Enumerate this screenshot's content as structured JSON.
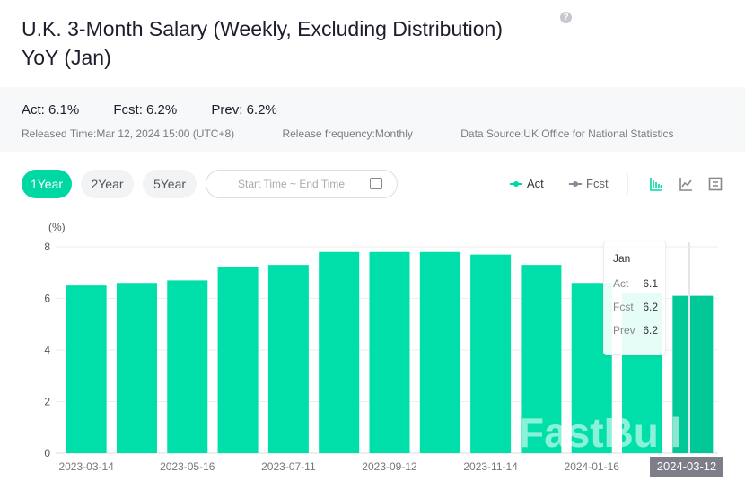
{
  "header": {
    "title": "U.K. 3-Month Salary (Weekly, Excluding Distribution) YoY (Jan)",
    "help_icon": "question-circle-icon"
  },
  "info": {
    "act": "Act: 6.1%",
    "fcst": "Fcst: 6.2%",
    "prev": "Prev: 6.2%",
    "released": "Released Time:Mar 12, 2024 15:00 (UTC+8)",
    "frequency": "Release frequency:Monthly",
    "source": "Data Source:UK Office for National Statistics"
  },
  "controls": {
    "ranges": [
      "1Year",
      "2Year",
      "5Year"
    ],
    "active_range": "1Year",
    "date_placeholder": "Start Time ~ End Time",
    "legend_act": "Act",
    "legend_fcst": "Fcst"
  },
  "tooltip": {
    "period": "Jan",
    "act_label": "Act",
    "act": "6.1",
    "fcst_label": "Fcst",
    "fcst": "6.2",
    "prev_label": "Prev",
    "prev": "6.2"
  },
  "watermark": "FastBull",
  "colors": {
    "accent": "#00d8a4",
    "bar": "#00dfaa",
    "bar_highlight": "#00c896",
    "fcst": "#8a8a96"
  },
  "chart_data": {
    "type": "bar",
    "ylabel": "(%)",
    "ylim": [
      0,
      8
    ],
    "yticks": [
      0,
      2,
      4,
      6,
      8
    ],
    "grid": true,
    "categories": [
      "2023-03-14",
      "",
      "2023-05-16",
      "",
      "2023-07-11",
      "",
      "2023-09-12",
      "",
      "2023-11-14",
      "",
      "2024-01-16",
      "",
      "2024-03-12"
    ],
    "values": [
      6.5,
      6.6,
      6.7,
      7.2,
      7.3,
      7.8,
      7.8,
      7.8,
      7.7,
      7.3,
      6.6,
      6.2,
      6.1
    ],
    "highlighted": "2024-03-12"
  }
}
